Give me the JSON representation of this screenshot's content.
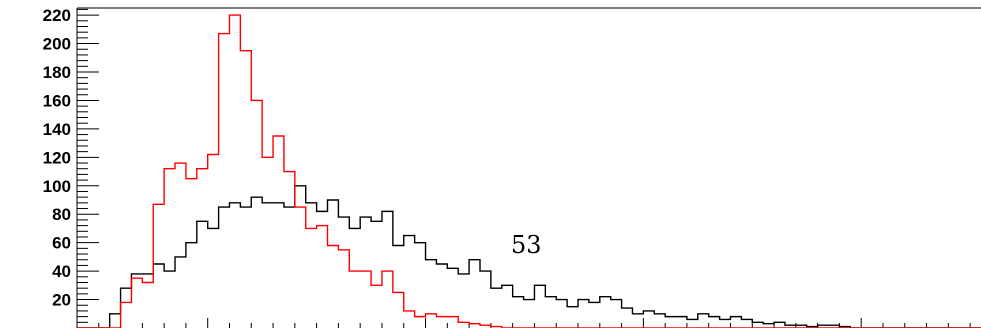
{
  "chart_data": {
    "type": "histogram",
    "title": "",
    "xlabel": "",
    "ylabel": "",
    "ylim": [
      0,
      225
    ],
    "y_ticks": [
      20,
      40,
      60,
      80,
      100,
      120,
      140,
      160,
      180,
      200,
      220
    ],
    "grid": false,
    "legend": "none",
    "bin_count": 83,
    "annotation": "53",
    "series": [
      {
        "color": "#000000",
        "values": [
          0,
          0,
          0,
          10,
          28,
          38,
          38,
          45,
          40,
          50,
          60,
          75,
          70,
          85,
          88,
          85,
          92,
          88,
          88,
          85,
          100,
          88,
          82,
          90,
          78,
          70,
          78,
          75,
          82,
          58,
          65,
          60,
          48,
          45,
          42,
          38,
          48,
          40,
          28,
          30,
          22,
          20,
          30,
          22,
          20,
          15,
          20,
          18,
          22,
          20,
          14,
          10,
          12,
          10,
          8,
          8,
          6,
          10,
          8,
          6,
          8,
          6,
          4,
          3,
          4,
          2,
          2,
          1,
          2,
          2,
          1,
          0,
          0,
          0,
          0,
          0,
          0,
          0,
          0,
          0,
          0,
          0,
          0
        ]
      },
      {
        "color": "#ff0000",
        "values": [
          0,
          0,
          0,
          0,
          18,
          35,
          32,
          87,
          112,
          116,
          105,
          112,
          122,
          207,
          220,
          195,
          160,
          120,
          135,
          110,
          85,
          70,
          72,
          58,
          55,
          40,
          40,
          30,
          40,
          25,
          12,
          8,
          10,
          8,
          8,
          4,
          3,
          2,
          1,
          0,
          0,
          0,
          0,
          0,
          0,
          0,
          0,
          0,
          0,
          0,
          0,
          0,
          0,
          0,
          0,
          0,
          0,
          0,
          0,
          0,
          0,
          0,
          0,
          0,
          0,
          0,
          0,
          0,
          0,
          0,
          0,
          0,
          0,
          0,
          0,
          0,
          0,
          0,
          0,
          0,
          0,
          0,
          0
        ]
      }
    ]
  }
}
